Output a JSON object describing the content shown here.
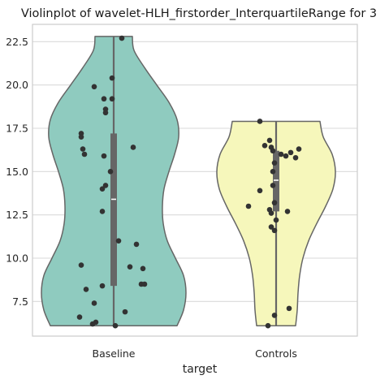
{
  "chart_data": {
    "type": "violin",
    "title": "Violinplot of wavelet-HLH_firstorder_InterquartileRange for 3",
    "xlabel": "target",
    "ylabel": "",
    "categories": [
      "Baseline",
      "Controls"
    ],
    "ylim": [
      5.5,
      23.5
    ],
    "yticks": [
      7.5,
      10.0,
      12.5,
      15.0,
      17.5,
      20.0,
      22.5
    ],
    "ytick_labels": [
      "7.5",
      "10.0",
      "12.5",
      "15.0",
      "17.5",
      "20.0",
      "22.5"
    ],
    "grid": true,
    "colors": {
      "Baseline": "#8fcbbf",
      "Controls": "#f6f7bb",
      "outline": "#666666",
      "points": "#333333",
      "box": "#666666",
      "median": "#ffffff",
      "grid": "#d9d9d9"
    },
    "violins": [
      {
        "name": "Baseline",
        "min": 6.1,
        "max": 22.8,
        "q1": 8.4,
        "median": 13.4,
        "q3": 17.2,
        "width_profile": [
          [
            6.1,
            0.78
          ],
          [
            7.0,
            0.86
          ],
          [
            8.0,
            0.89
          ],
          [
            9.0,
            0.86
          ],
          [
            10.0,
            0.76
          ],
          [
            11.0,
            0.66
          ],
          [
            12.0,
            0.61
          ],
          [
            13.0,
            0.6
          ],
          [
            14.0,
            0.62
          ],
          [
            15.0,
            0.68
          ],
          [
            16.0,
            0.75
          ],
          [
            17.0,
            0.8
          ],
          [
            18.0,
            0.78
          ],
          [
            19.0,
            0.68
          ],
          [
            20.0,
            0.53
          ],
          [
            21.0,
            0.38
          ],
          [
            22.0,
            0.25
          ],
          [
            22.8,
            0.23
          ]
        ],
        "points": [
          [
            22.7,
            0.05
          ],
          [
            20.4,
            -0.01
          ],
          [
            19.9,
            -0.12
          ],
          [
            19.2,
            -0.06
          ],
          [
            19.2,
            -0.01
          ],
          [
            18.6,
            -0.05
          ],
          [
            18.4,
            -0.05
          ],
          [
            17.2,
            -0.2
          ],
          [
            17.0,
            -0.2
          ],
          [
            16.4,
            0.12
          ],
          [
            16.3,
            -0.19
          ],
          [
            16.0,
            -0.18
          ],
          [
            15.9,
            -0.06
          ],
          [
            15.0,
            -0.02
          ],
          [
            14.2,
            -0.05
          ],
          [
            14.0,
            -0.07
          ],
          [
            12.7,
            -0.07
          ],
          [
            11.0,
            0.03
          ],
          [
            10.8,
            0.14
          ],
          [
            9.6,
            -0.2
          ],
          [
            9.5,
            0.1
          ],
          [
            9.4,
            0.18
          ],
          [
            8.5,
            0.17
          ],
          [
            8.5,
            0.19
          ],
          [
            8.4,
            -0.07
          ],
          [
            8.2,
            -0.17
          ],
          [
            7.4,
            -0.12
          ],
          [
            6.9,
            0.07
          ],
          [
            6.6,
            -0.21
          ],
          [
            6.3,
            -0.11
          ],
          [
            6.2,
            -0.13
          ],
          [
            6.1,
            0.01
          ]
        ]
      },
      {
        "name": "Controls",
        "min": 6.1,
        "max": 17.9,
        "q1": 12.7,
        "median": 14.5,
        "q3": 16.2,
        "width_profile": [
          [
            6.1,
            0.24
          ],
          [
            7.0,
            0.26
          ],
          [
            8.0,
            0.27
          ],
          [
            9.0,
            0.29
          ],
          [
            10.0,
            0.33
          ],
          [
            11.0,
            0.4
          ],
          [
            12.0,
            0.5
          ],
          [
            13.0,
            0.61
          ],
          [
            14.0,
            0.7
          ],
          [
            15.0,
            0.73
          ],
          [
            16.0,
            0.69
          ],
          [
            17.0,
            0.58
          ],
          [
            17.9,
            0.54
          ]
        ],
        "points": [
          [
            17.9,
            -0.1
          ],
          [
            16.8,
            -0.04
          ],
          [
            16.5,
            -0.07
          ],
          [
            16.4,
            -0.03
          ],
          [
            16.3,
            0.14
          ],
          [
            16.2,
            -0.02
          ],
          [
            16.1,
            0.09
          ],
          [
            16.0,
            0.03
          ],
          [
            15.9,
            0.06
          ],
          [
            15.8,
            0.12
          ],
          [
            15.5,
            -0.01
          ],
          [
            15.0,
            -0.02
          ],
          [
            14.2,
            -0.02
          ],
          [
            13.9,
            -0.1
          ],
          [
            13.2,
            -0.01
          ],
          [
            13.0,
            -0.17
          ],
          [
            12.8,
            -0.04
          ],
          [
            12.7,
            0.07
          ],
          [
            12.6,
            -0.03
          ],
          [
            12.2,
            0.0
          ],
          [
            11.8,
            -0.03
          ],
          [
            11.6,
            -0.01
          ],
          [
            7.1,
            0.08
          ],
          [
            6.7,
            -0.01
          ],
          [
            6.1,
            -0.05
          ]
        ]
      }
    ]
  }
}
